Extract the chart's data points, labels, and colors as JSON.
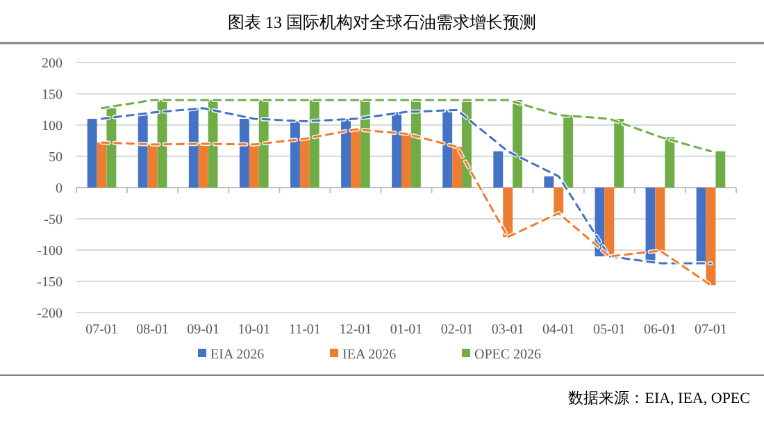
{
  "chart_data": {
    "type": "bar",
    "title": "图表 13   国际机构对全球石油需求增长预测",
    "annotations": [
      "数据来源：EIA, IEA, OPEC"
    ],
    "categories": [
      "07-01",
      "08-01",
      "09-01",
      "10-01",
      "11-01",
      "12-01",
      "01-01",
      "02-01",
      "03-01",
      "04-01",
      "05-01",
      "06-01",
      "07-01"
    ],
    "series": [
      {
        "name": "EIA 2026",
        "color": "#4472c4",
        "values": [
          110,
          120,
          127,
          110,
          106,
          110,
          121,
          124,
          58,
          18,
          -110,
          -121,
          -121
        ]
      },
      {
        "name": "IEA 2026",
        "color": "#ed7d31",
        "values": [
          72,
          69,
          70,
          69,
          78,
          93,
          86,
          65,
          -79,
          -41,
          -110,
          -101,
          -156
        ]
      },
      {
        "name": "OPEC 2026",
        "color": "#70ad47",
        "values": [
          127,
          140,
          140,
          140,
          140,
          140,
          140,
          140,
          140,
          116,
          110,
          81,
          58
        ]
      },
      {
        "type": "line",
        "line_style": "dashed",
        "color": "#4472c4",
        "values": [
          110,
          120,
          127,
          110,
          106,
          110,
          121,
          124,
          58,
          18,
          -110,
          -121,
          -121
        ]
      },
      {
        "type": "line",
        "line_style": "dashed",
        "color": "#ed7d31",
        "values": [
          72,
          69,
          70,
          69,
          78,
          93,
          86,
          65,
          -79,
          -41,
          -110,
          -101,
          -156
        ]
      },
      {
        "type": "line",
        "line_style": "dashed",
        "color": "#70ad47",
        "values": [
          127,
          140,
          140,
          140,
          140,
          140,
          140,
          140,
          140,
          116,
          110,
          81,
          58
        ]
      }
    ],
    "ylim": [
      -200,
      200
    ],
    "yticks": [
      -200,
      -150,
      -100,
      -50,
      0,
      50,
      100,
      150,
      200
    ],
    "grid": "y",
    "legend": "bottom"
  }
}
